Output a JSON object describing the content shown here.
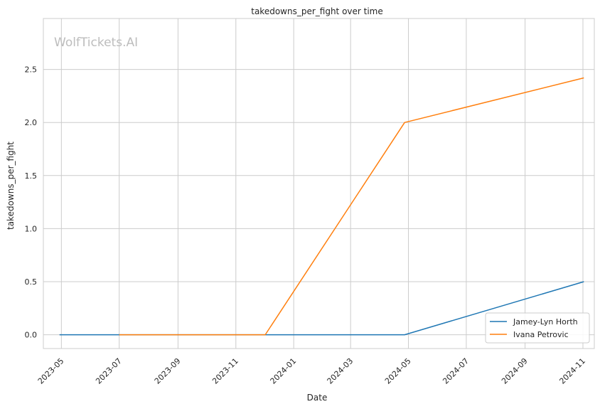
{
  "watermark": "WolfTickets.AI",
  "chart_data": {
    "type": "line",
    "title": "takedowns_per_fight over time",
    "xlabel": "Date",
    "ylabel": "takedowns_per_fight",
    "x_range": [
      "2023-04-12",
      "2024-11-13"
    ],
    "ylim": [
      -0.13,
      2.98
    ],
    "x_ticks": [
      "2023-05",
      "2023-07",
      "2023-09",
      "2023-11",
      "2024-01",
      "2024-03",
      "2024-05",
      "2024-07",
      "2024-09",
      "2024-11"
    ],
    "y_ticks": [
      "0.0",
      "0.5",
      "1.0",
      "1.5",
      "2.0",
      "2.5"
    ],
    "grid": true,
    "legend_position": "bottom-right",
    "series": [
      {
        "name": "Jamey-Lyn Horth",
        "color": "#1f77b4",
        "points": [
          {
            "x": "2023-04-29",
            "y": 0.0
          },
          {
            "x": "2024-04-27",
            "y": 0.0
          },
          {
            "x": "2024-11-02",
            "y": 0.5
          }
        ]
      },
      {
        "name": "Ivana Petrovic",
        "color": "#ff7f0e",
        "points": [
          {
            "x": "2023-07-01",
            "y": 0.0
          },
          {
            "x": "2023-12-02",
            "y": 0.0
          },
          {
            "x": "2024-04-27",
            "y": 2.0
          },
          {
            "x": "2024-11-02",
            "y": 2.42
          }
        ]
      }
    ]
  }
}
